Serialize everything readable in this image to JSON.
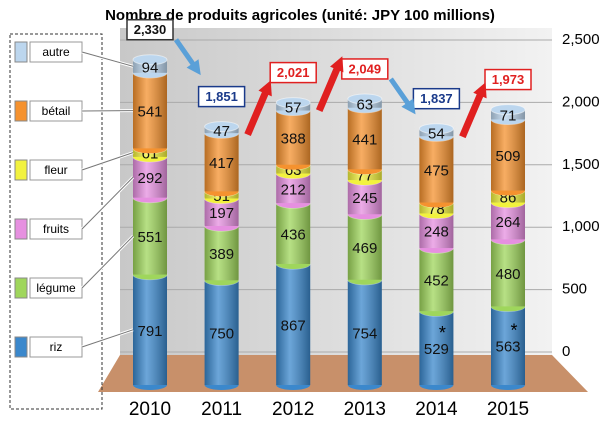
{
  "chart_data": {
    "type": "stacked-cylinder",
    "title": "Nombre de produits agricoles (unité: JPY 100 millions)",
    "categories": [
      "2010",
      "2011",
      "2012",
      "2013",
      "2014",
      "2015"
    ],
    "series": [
      {
        "name": "riz",
        "color": "#3b88cc",
        "values": [
          791,
          750,
          867,
          754,
          529,
          563
        ]
      },
      {
        "name": "légume",
        "color": "#9fd65c",
        "values": [
          551,
          389,
          436,
          469,
          452,
          480
        ]
      },
      {
        "name": "fruits",
        "color": "#e690e0",
        "values": [
          292,
          197,
          212,
          245,
          248,
          264
        ]
      },
      {
        "name": "fleur",
        "color": "#f2f23e",
        "values": [
          61,
          51,
          63,
          77,
          78,
          86
        ]
      },
      {
        "name": "bétail",
        "color": "#f5922f",
        "values": [
          541,
          417,
          388,
          441,
          475,
          509
        ]
      },
      {
        "name": "autre",
        "color": "#bcd6ee",
        "values": [
          94,
          47,
          57,
          63,
          54,
          71
        ]
      }
    ],
    "totals": {
      "values": [
        2330,
        1851,
        2021,
        2049,
        1837,
        1973
      ],
      "value_labels": [
        "2,330",
        "1,851",
        "2,021",
        "2,049",
        "1,837",
        "1,973"
      ]
    },
    "annotations": [
      {
        "category": 4,
        "text": "*"
      },
      {
        "category": 5,
        "text": "*"
      }
    ],
    "ylim": [
      0,
      2500
    ],
    "yticks": [
      0,
      500,
      {
        "value": 1000,
        "label": "1,000"
      },
      {
        "value": 1500,
        "label": "1,500"
      },
      {
        "value": 2000,
        "label": "2,000"
      },
      {
        "value": 2500,
        "label": "2,500"
      }
    ],
    "grid": true
  }
}
